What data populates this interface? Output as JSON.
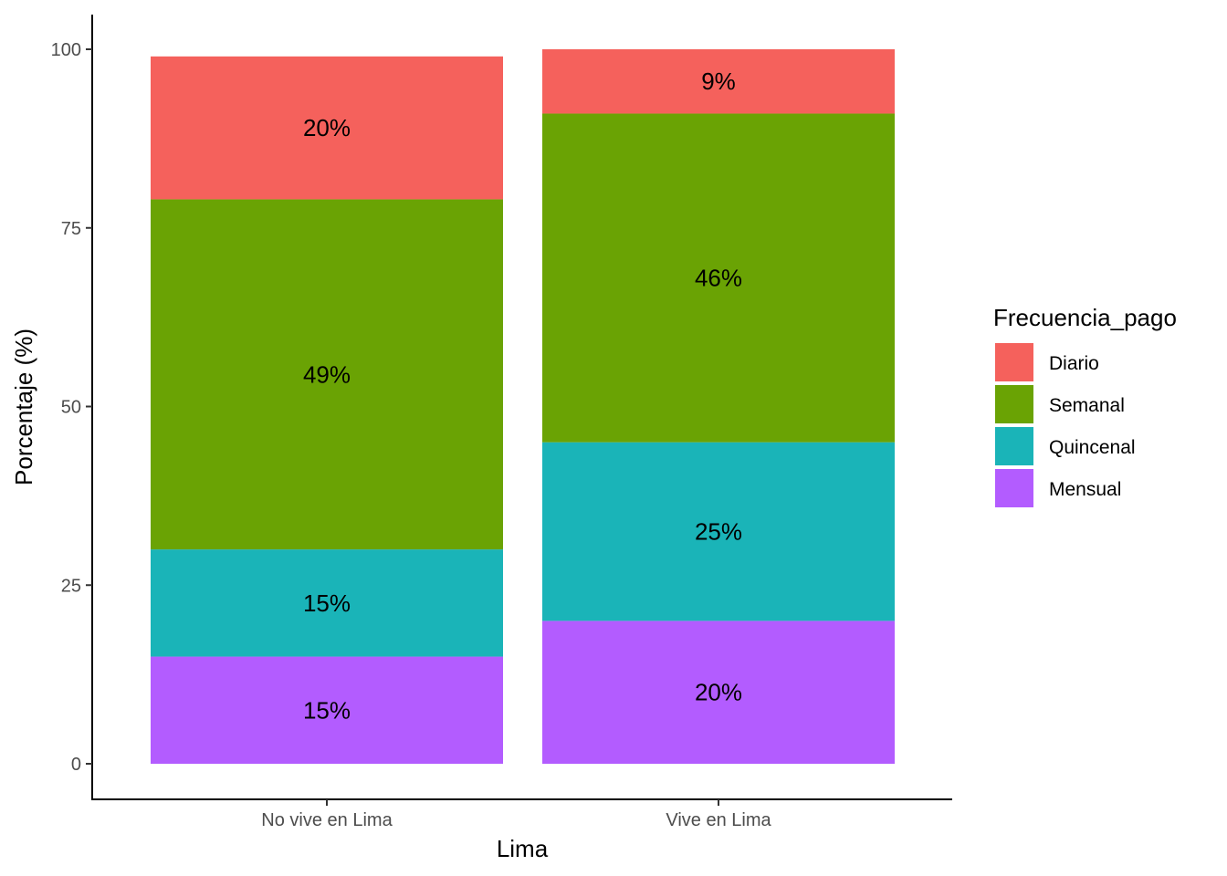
{
  "chart_data": {
    "type": "bar",
    "stacked": true,
    "categories": [
      "No vive en Lima",
      "Vive en Lima"
    ],
    "series": [
      {
        "name": "Mensual",
        "values": [
          15,
          20
        ],
        "labels": [
          "15%",
          "20%"
        ],
        "color": "#B35CFF"
      },
      {
        "name": "Quincenal",
        "values": [
          15,
          25
        ],
        "labels": [
          "15%",
          "25%"
        ],
        "color": "#1AB4B8"
      },
      {
        "name": "Semanal",
        "values": [
          49,
          46
        ],
        "labels": [
          "49%",
          "46%"
        ],
        "color": "#6AA304"
      },
      {
        "name": "Diario",
        "values": [
          20,
          9
        ],
        "labels": [
          "20%",
          "9%"
        ],
        "color": "#F5615C"
      }
    ],
    "title": "",
    "xlabel": "Lima",
    "ylabel": "Porcentaje (%)",
    "ylim": [
      0,
      100
    ],
    "yticks": [
      0,
      25,
      50,
      75,
      100
    ],
    "grid": false,
    "legend": {
      "title": "Frecuencia_pago",
      "order": [
        "Diario",
        "Semanal",
        "Quincenal",
        "Mensual"
      ],
      "placement": "right"
    }
  }
}
